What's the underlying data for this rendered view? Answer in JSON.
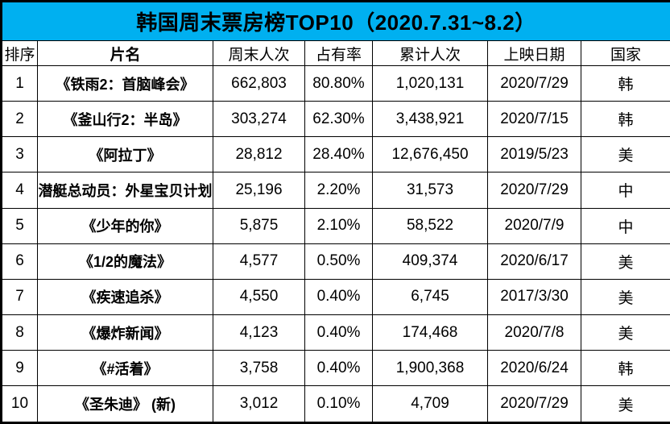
{
  "title": "韩国周末票房榜TOP10（2020.7.31~8.2）",
  "colors": {
    "title_bg": "#00b0f0",
    "border": "#000000",
    "cell_bg": "#ffffff",
    "text": "#000000"
  },
  "chart_data": {
    "type": "table",
    "title": "韩国周末票房榜TOP10（2020.7.31~8.2）",
    "columns": [
      "排序",
      "片名",
      "周末人次",
      "占有率",
      "累计人次",
      "上映日期",
      "国家"
    ],
    "rows": [
      [
        "1",
        "《铁雨2：首脑峰会》",
        "662,803",
        "80.80%",
        "1,020,131",
        "2020/7/29",
        "韩"
      ],
      [
        "2",
        "《釜山行2：半岛》",
        "303,274",
        "62.30%",
        "3,438,921",
        "2020/7/15",
        "韩"
      ],
      [
        "3",
        "《阿拉丁》",
        "28,812",
        "28.40%",
        "12,676,450",
        "2019/5/23",
        "美"
      ],
      [
        "4",
        "潜艇总动员：外星宝贝计划",
        "25,196",
        "2.20%",
        "31,573",
        "2020/7/29",
        "中"
      ],
      [
        "5",
        "《少年的你》",
        "5,875",
        "2.10%",
        "58,522",
        "2020/7/9",
        "中"
      ],
      [
        "6",
        "《1/2的魔法》",
        "4,577",
        "0.50%",
        "409,374",
        "2020/6/17",
        "美"
      ],
      [
        "7",
        "《疾速追杀》",
        "4,550",
        "0.40%",
        "6,745",
        "2017/3/30",
        "美"
      ],
      [
        "8",
        "《爆炸新闻》",
        "4,123",
        "0.40%",
        "174,468",
        "2020/7/8",
        "美"
      ],
      [
        "9",
        "《#活着》",
        "3,758",
        "0.40%",
        "1,900,368",
        "2020/6/24",
        "韩"
      ],
      [
        "10",
        "《圣朱迪》 (新)",
        "3,012",
        "0.10%",
        "4,709",
        "2020/7/29",
        "美"
      ]
    ]
  }
}
